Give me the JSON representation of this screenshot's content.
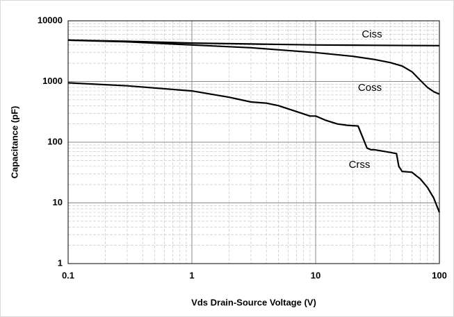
{
  "chart_data": {
    "type": "line",
    "xlabel": "Vds Drain-Source Voltage (V)",
    "ylabel": "Capacitance (pF)",
    "log_x": true,
    "log_y": true,
    "grid": true,
    "xlim": [
      0.1,
      100
    ],
    "ylim": [
      1,
      10000
    ],
    "xticks": [
      0.1,
      1,
      10,
      100
    ],
    "yticks": [
      1,
      10,
      100,
      1000,
      10000
    ],
    "xminor": [
      0.2,
      0.3,
      0.4,
      0.5,
      0.6,
      0.7,
      0.8,
      0.9,
      2,
      3,
      4,
      5,
      6,
      7,
      8,
      9,
      20,
      30,
      40,
      50,
      60,
      70,
      80,
      90
    ],
    "yminor": [
      2,
      3,
      4,
      5,
      6,
      7,
      8,
      9,
      20,
      30,
      40,
      50,
      60,
      70,
      80,
      90,
      200,
      300,
      400,
      500,
      600,
      700,
      800,
      900,
      2000,
      3000,
      4000,
      5000,
      6000,
      7000,
      8000,
      9000
    ],
    "series": [
      {
        "name": "Ciss",
        "color": "#000000",
        "x": [
          0.1,
          0.3,
          1,
          3,
          10,
          30,
          100
        ],
        "values": [
          4800,
          4600,
          4300,
          4150,
          4000,
          3950,
          3900
        ]
      },
      {
        "name": "Coss",
        "color": "#000000",
        "x": [
          0.1,
          0.3,
          1,
          3,
          10,
          20,
          30,
          40,
          50,
          60,
          70,
          80,
          90,
          100
        ],
        "values": [
          4800,
          4500,
          4000,
          3600,
          3000,
          2600,
          2300,
          2050,
          1800,
          1450,
          1050,
          800,
          680,
          620
        ]
      },
      {
        "name": "Crss",
        "color": "#000000",
        "x": [
          0.1,
          0.3,
          1,
          2,
          3,
          4,
          5,
          7,
          9,
          10,
          12,
          15,
          18,
          22,
          24,
          26,
          28,
          30,
          40,
          45,
          47,
          50,
          60,
          65,
          70,
          80,
          90,
          100
        ],
        "values": [
          950,
          850,
          700,
          550,
          460,
          440,
          400,
          320,
          270,
          270,
          230,
          200,
          190,
          185,
          120,
          80,
          75,
          75,
          68,
          65,
          40,
          33,
          32,
          28,
          25,
          18,
          12,
          7
        ]
      }
    ]
  }
}
